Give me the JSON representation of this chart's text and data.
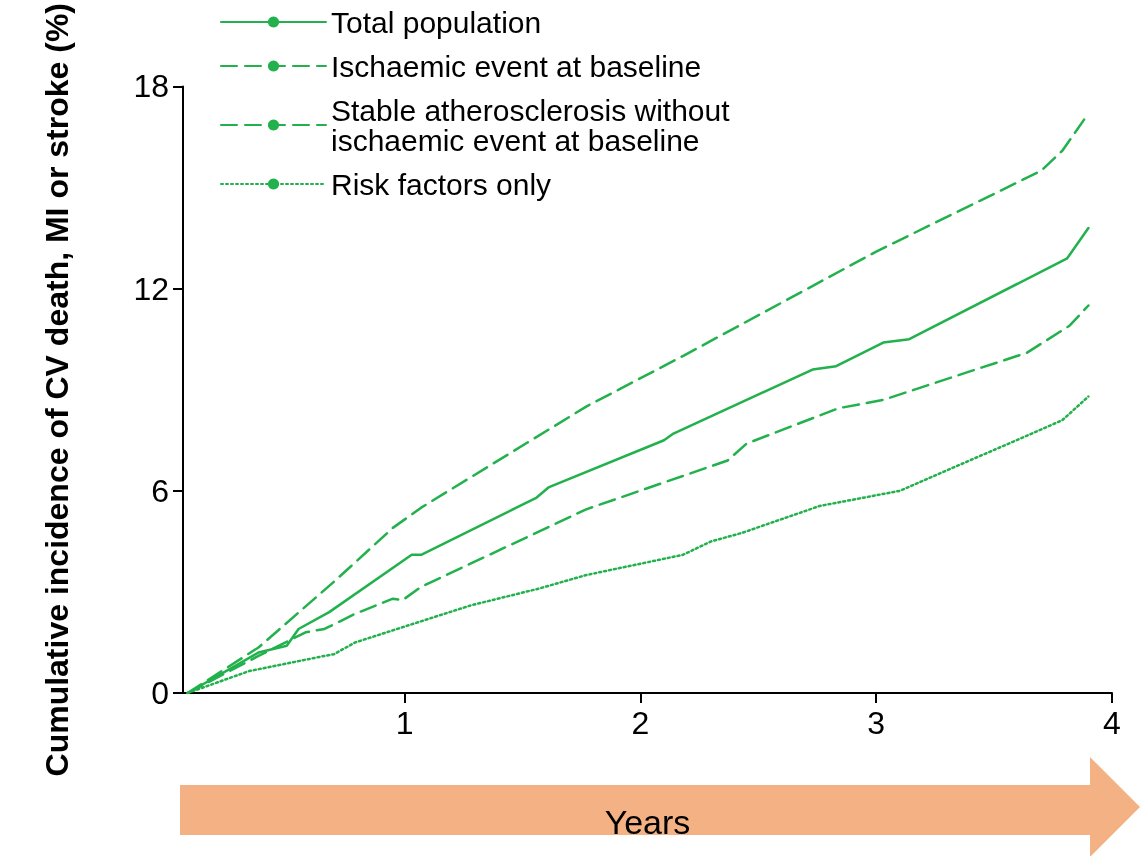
{
  "chart_data": {
    "type": "line",
    "xlabel": "Years",
    "ylabel": "Cumulative incidence of CV death, MI or stroke (%)",
    "xlim": [
      0.06,
      4
    ],
    "xticks": [
      1,
      2,
      3,
      4
    ],
    "ylim": [
      0,
      18
    ],
    "yticks": [
      0,
      6,
      12,
      18
    ],
    "grid": false,
    "legend": "top left",
    "marker": "none",
    "series": [
      {
        "name": "Total population",
        "color": "#22b14c",
        "line_style": "solid",
        "x": [
          0.08,
          0.38,
          0.5,
          0.55,
          0.68,
          1.03,
          1.07,
          1.56,
          1.61,
          2.1,
          2.14,
          2.73,
          2.83,
          3.03,
          3.14,
          3.81,
          3.9
        ],
        "values": [
          0,
          1.2,
          1.4,
          1.9,
          2.4,
          4.1,
          4.1,
          5.8,
          6.1,
          7.5,
          7.7,
          9.6,
          9.7,
          10.4,
          10.5,
          12.9,
          13.8
        ]
      },
      {
        "name": "Ischaemic event at baseline",
        "color": "#22b14c",
        "line_style": "dashed",
        "x": [
          0.08,
          0.38,
          0.7,
          0.95,
          1.07,
          1.77,
          2.18,
          3.0,
          3.7,
          3.79,
          3.89
        ],
        "values": [
          0,
          1.35,
          3.3,
          4.9,
          5.5,
          8.5,
          10,
          13.1,
          15.5,
          16.1,
          17.1
        ]
      },
      {
        "name": "Stable atherosclerosis without ischaemic event at baseline",
        "color": "#22b14c",
        "line_style": "dashed",
        "x": [
          0.08,
          0.38,
          0.58,
          0.66,
          0.79,
          0.95,
          0.99,
          1.07,
          1.77,
          2.37,
          2.45,
          2.84,
          3.03,
          3.64,
          3.82,
          3.9
        ],
        "values": [
          0,
          1.1,
          1.8,
          1.9,
          2.35,
          2.8,
          2.75,
          3.15,
          5.45,
          6.9,
          7.4,
          8.45,
          8.7,
          10.1,
          10.9,
          11.5
        ]
      },
      {
        "name": "Risk factors only",
        "color": "#22b14c",
        "line_style": "dotted",
        "x": [
          0.08,
          0.34,
          0.66,
          0.7,
          0.79,
          0.99,
          1.28,
          1.57,
          1.77,
          2.18,
          2.3,
          2.43,
          2.76,
          3.1,
          3.66,
          3.79,
          3.9
        ],
        "values": [
          0,
          0.65,
          1.1,
          1.15,
          1.5,
          1.95,
          2.6,
          3.1,
          3.5,
          4.1,
          4.5,
          4.75,
          5.55,
          6.0,
          7.7,
          8.1,
          8.8
        ]
      }
    ]
  }
}
